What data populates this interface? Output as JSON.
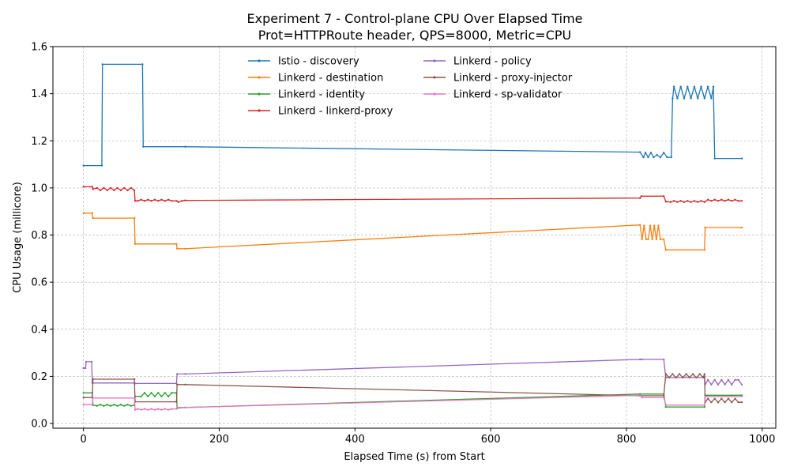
{
  "chart_data": {
    "type": "line",
    "title": "Experiment 7 - Control-plane CPU Over Elapsed Time",
    "subtitle": "Prot=HTTPRoute header, QPS=8000, Metric=CPU",
    "xlabel": "Elapsed Time (s) from Start",
    "ylabel": "CPU Usage (millicore)",
    "xlim": [
      -45,
      1020
    ],
    "ylim": [
      -0.02,
      1.6
    ],
    "xticks": [
      0,
      200,
      400,
      600,
      800,
      1000
    ],
    "yticks": [
      0.0,
      0.2,
      0.4,
      0.6,
      0.8,
      1.0,
      1.2,
      1.4,
      1.6
    ],
    "xtick_labels": [
      "0",
      "200",
      "400",
      "600",
      "800",
      "1000"
    ],
    "ytick_labels": [
      "0.0",
      "0.2",
      "0.4",
      "0.6",
      "0.8",
      "1.0",
      "1.2",
      "1.4",
      "1.6"
    ],
    "grid": true,
    "legend_position": "top-center",
    "legend_columns": 2,
    "series": [
      {
        "name": "Istio - discovery",
        "color": "#1f77b4",
        "x": [
          0,
          27,
          28,
          87,
          88,
          150,
          820,
          825,
          828,
          832,
          836,
          840,
          845,
          850,
          855,
          860,
          866,
          868,
          870,
          875,
          880,
          885,
          890,
          895,
          900,
          905,
          910,
          915,
          920,
          925,
          928,
          930,
          970
        ],
        "y": [
          1.095,
          1.095,
          1.525,
          1.525,
          1.175,
          1.175,
          1.152,
          1.13,
          1.15,
          1.13,
          1.15,
          1.13,
          1.14,
          1.13,
          1.15,
          1.13,
          1.13,
          1.38,
          1.43,
          1.38,
          1.43,
          1.38,
          1.43,
          1.38,
          1.43,
          1.38,
          1.43,
          1.38,
          1.43,
          1.38,
          1.43,
          1.125,
          1.125
        ]
      },
      {
        "name": "Linkerd - destination",
        "color": "#ff7f0e",
        "x": [
          0,
          13,
          14,
          75,
          76,
          137,
          138,
          150,
          820,
          823,
          826,
          829,
          832,
          835,
          838,
          841,
          844,
          847,
          850,
          855,
          858,
          915,
          916,
          970
        ],
        "y": [
          0.893,
          0.893,
          0.872,
          0.872,
          0.762,
          0.762,
          0.742,
          0.742,
          0.843,
          0.782,
          0.84,
          0.782,
          0.782,
          0.84,
          0.782,
          0.84,
          0.782,
          0.84,
          0.782,
          0.782,
          0.737,
          0.737,
          0.832,
          0.832
        ]
      },
      {
        "name": "Linkerd - identity",
        "color": "#2ca02c",
        "x": [
          0,
          13,
          14,
          20,
          25,
          30,
          35,
          40,
          45,
          50,
          55,
          60,
          65,
          70,
          75,
          76,
          85,
          90,
          95,
          100,
          105,
          110,
          115,
          120,
          125,
          130,
          137,
          138,
          150,
          820,
          855,
          858,
          915,
          916,
          970
        ],
        "y": [
          0.13,
          0.13,
          0.078,
          0.075,
          0.08,
          0.075,
          0.08,
          0.075,
          0.08,
          0.075,
          0.08,
          0.075,
          0.08,
          0.075,
          0.078,
          0.115,
          0.115,
          0.13,
          0.115,
          0.13,
          0.115,
          0.13,
          0.115,
          0.13,
          0.115,
          0.13,
          0.13,
          0.065,
          0.068,
          0.125,
          0.125,
          0.07,
          0.07,
          0.12,
          0.12
        ]
      },
      {
        "name": "Linkerd - linkerd-proxy",
        "color": "#d62728",
        "x": [
          0,
          13,
          14,
          20,
          25,
          30,
          35,
          40,
          45,
          50,
          55,
          60,
          65,
          70,
          75,
          76,
          80,
          85,
          90,
          95,
          100,
          105,
          110,
          115,
          120,
          125,
          130,
          137,
          140,
          145,
          150,
          820,
          822,
          855,
          858,
          865,
          870,
          875,
          880,
          885,
          890,
          895,
          900,
          905,
          910,
          915,
          920,
          925,
          930,
          935,
          940,
          945,
          950,
          955,
          960,
          965,
          970
        ],
        "y": [
          1.005,
          1.005,
          0.995,
          1.0,
          0.99,
          1.0,
          0.99,
          1.0,
          0.99,
          1.0,
          0.99,
          1.0,
          0.99,
          1.0,
          0.99,
          0.945,
          0.945,
          0.95,
          0.945,
          0.95,
          0.945,
          0.95,
          0.945,
          0.95,
          0.945,
          0.95,
          0.945,
          0.945,
          0.94,
          0.945,
          0.947,
          0.957,
          0.965,
          0.965,
          0.942,
          0.94,
          0.945,
          0.94,
          0.945,
          0.94,
          0.945,
          0.94,
          0.945,
          0.94,
          0.945,
          0.94,
          0.95,
          0.945,
          0.95,
          0.945,
          0.95,
          0.945,
          0.95,
          0.945,
          0.95,
          0.945,
          0.945
        ]
      },
      {
        "name": "Linkerd - policy",
        "color": "#9467bd",
        "x": [
          0,
          3,
          4,
          12,
          13,
          75,
          76,
          137,
          138,
          150,
          820,
          823,
          855,
          858,
          915,
          916,
          920,
          925,
          930,
          935,
          940,
          945,
          950,
          955,
          960,
          965,
          970
        ],
        "y": [
          0.235,
          0.235,
          0.262,
          0.262,
          0.172,
          0.172,
          0.17,
          0.17,
          0.21,
          0.21,
          0.272,
          0.272,
          0.272,
          0.195,
          0.195,
          0.165,
          0.185,
          0.165,
          0.185,
          0.165,
          0.185,
          0.165,
          0.185,
          0.165,
          0.185,
          0.185,
          0.165
        ]
      },
      {
        "name": "Linkerd - proxy-injector",
        "color": "#8c564b",
        "x": [
          0,
          13,
          14,
          75,
          76,
          137,
          138,
          150,
          820,
          855,
          858,
          863,
          868,
          873,
          878,
          883,
          888,
          893,
          898,
          903,
          908,
          913,
          915,
          916,
          920,
          925,
          930,
          935,
          940,
          945,
          950,
          955,
          960,
          965,
          970
        ],
        "y": [
          0.11,
          0.11,
          0.188,
          0.188,
          0.092,
          0.092,
          0.165,
          0.165,
          0.118,
          0.118,
          0.21,
          0.195,
          0.21,
          0.195,
          0.21,
          0.195,
          0.21,
          0.195,
          0.21,
          0.195,
          0.21,
          0.195,
          0.21,
          0.09,
          0.105,
          0.09,
          0.105,
          0.09,
          0.105,
          0.09,
          0.105,
          0.09,
          0.105,
          0.09,
          0.09
        ]
      },
      {
        "name": "Linkerd - sp-validator",
        "color": "#e377c2",
        "x": [
          0,
          13,
          14,
          75,
          76,
          80,
          85,
          90,
          95,
          100,
          105,
          110,
          115,
          120,
          125,
          130,
          137,
          138,
          150,
          820,
          823,
          855,
          858,
          915,
          916,
          970
        ],
        "y": [
          0.08,
          0.08,
          0.108,
          0.108,
          0.058,
          0.062,
          0.058,
          0.062,
          0.058,
          0.062,
          0.058,
          0.062,
          0.058,
          0.062,
          0.058,
          0.062,
          0.062,
          0.068,
          0.068,
          0.12,
          0.11,
          0.11,
          0.078,
          0.078,
          0.115,
          0.115
        ]
      }
    ]
  }
}
